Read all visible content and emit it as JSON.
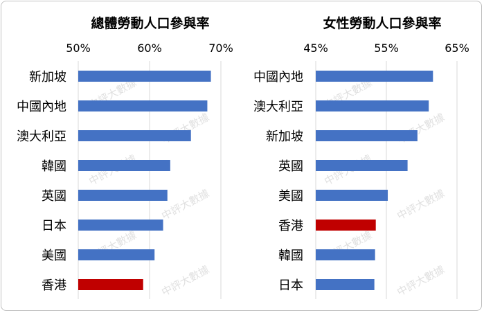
{
  "watermark": "中評大數據",
  "chart_data": [
    {
      "type": "bar",
      "orientation": "horizontal",
      "title": "總體勞動人口參與率",
      "categories": [
        "新加坡",
        "中國內地",
        "澳大利亞",
        "韓國",
        "英國",
        "日本",
        "美國",
        "香港"
      ],
      "values": [
        68.6,
        68.1,
        65.8,
        62.9,
        62.5,
        61.9,
        60.7,
        59.1
      ],
      "colors": [
        "#4472c4",
        "#4472c4",
        "#4472c4",
        "#4472c4",
        "#4472c4",
        "#4472c4",
        "#4472c4",
        "#c00000"
      ],
      "xlim": [
        50,
        70
      ],
      "xticks": [
        "50%",
        "60%",
        "70%"
      ],
      "xtick_values": [
        50,
        60,
        70
      ],
      "axis_position": "top",
      "grid": true
    },
    {
      "type": "bar",
      "orientation": "horizontal",
      "title": "女性勞動人口參與率",
      "categories": [
        "中國內地",
        "澳大利亞",
        "新加坡",
        "英國",
        "美國",
        "香港",
        "韓國",
        "日本"
      ],
      "values": [
        61.6,
        61.0,
        59.4,
        58.0,
        55.2,
        53.5,
        53.4,
        53.3
      ],
      "colors": [
        "#4472c4",
        "#4472c4",
        "#4472c4",
        "#4472c4",
        "#4472c4",
        "#c00000",
        "#4472c4",
        "#4472c4"
      ],
      "xlim": [
        45,
        65
      ],
      "xticks": [
        "45%",
        "55%",
        "65%"
      ],
      "xtick_values": [
        45,
        55,
        65
      ],
      "axis_position": "top",
      "grid": true
    }
  ]
}
